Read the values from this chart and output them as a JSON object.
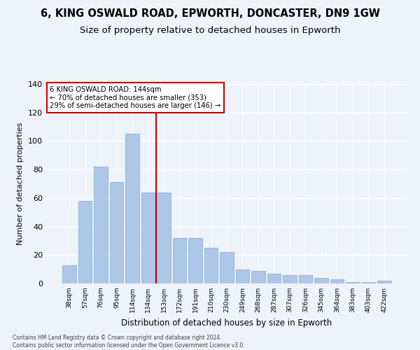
{
  "title1": "6, KING OSWALD ROAD, EPWORTH, DONCASTER, DN9 1GW",
  "title2": "Size of property relative to detached houses in Epworth",
  "xlabel": "Distribution of detached houses by size in Epworth",
  "ylabel": "Number of detached properties",
  "categories": [
    "38sqm",
    "57sqm",
    "76sqm",
    "95sqm",
    "114sqm",
    "134sqm",
    "153sqm",
    "172sqm",
    "191sqm",
    "210sqm",
    "230sqm",
    "249sqm",
    "268sqm",
    "287sqm",
    "307sqm",
    "326sqm",
    "345sqm",
    "364sqm",
    "383sqm",
    "403sqm",
    "422sqm"
  ],
  "values": [
    13,
    58,
    82,
    71,
    105,
    64,
    64,
    32,
    32,
    25,
    22,
    10,
    9,
    7,
    6,
    6,
    4,
    3,
    1,
    1,
    2
  ],
  "bar_color": "#aec6e8",
  "bar_edge_color": "#7aadd4",
  "vline_index": 5.5,
  "vline_color": "#cc0000",
  "annotation_line1": "6 KING OSWALD ROAD: 144sqm",
  "annotation_line2": "← 70% of detached houses are smaller (353)",
  "annotation_line3": "29% of semi-detached houses are larger (146) →",
  "annotation_box_color": "#ffffff",
  "annotation_box_edge": "#cc0000",
  "ylim": [
    0,
    140
  ],
  "yticks": [
    0,
    20,
    40,
    60,
    80,
    100,
    120,
    140
  ],
  "footnote": "Contains HM Land Registry data © Crown copyright and database right 2024.\nContains public sector information licensed under the Open Government Licence v3.0.",
  "bg_color": "#eef2f9",
  "title1_fontsize": 10.5,
  "title2_fontsize": 9.5
}
